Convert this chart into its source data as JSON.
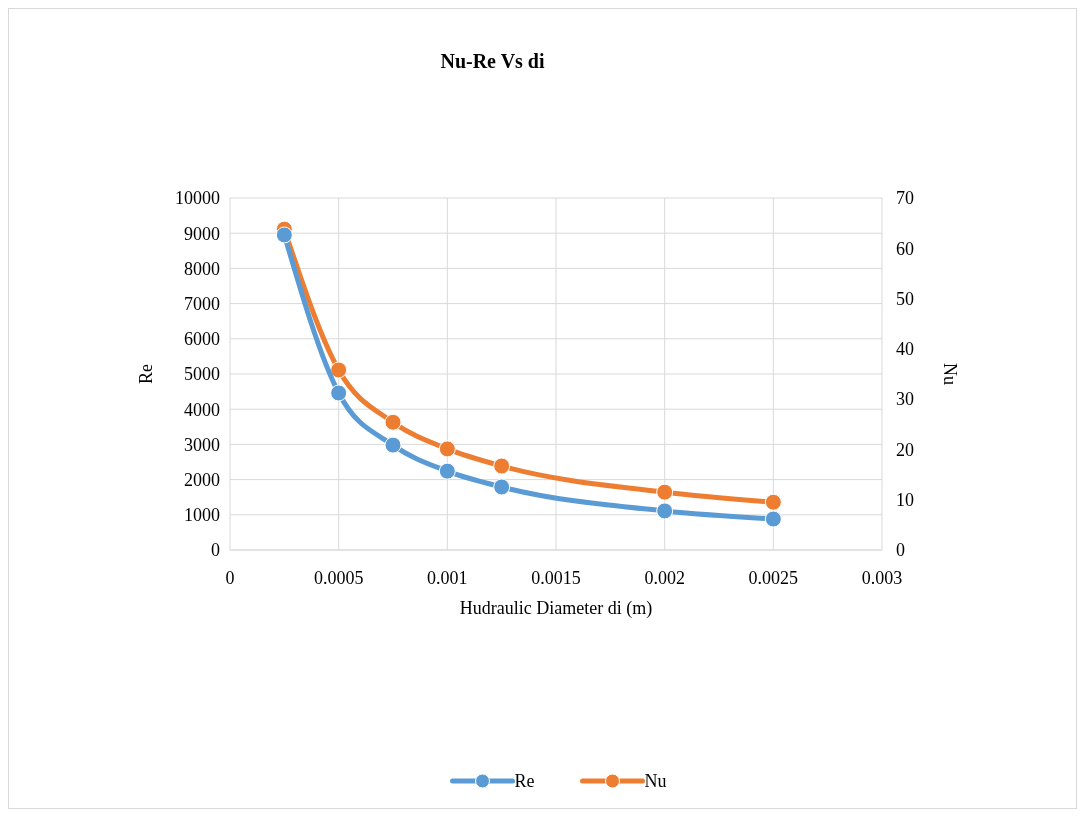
{
  "chart_data": {
    "type": "line",
    "title": "Nu-Re Vs di",
    "xlabel": "Hudraulic Diameter di (m)",
    "ylabel": "Re",
    "y2label": "Nu",
    "x": [
      0.00025,
      0.0005,
      0.00075,
      0.001,
      0.00125,
      0.002,
      0.0025
    ],
    "series": [
      {
        "name": "Re",
        "color": "#5b9bd5",
        "values": [
          8950,
          4460,
          2980,
          2240,
          1790,
          1110,
          880
        ]
      },
      {
        "name": "Nu",
        "color": "#ed7d31",
        "axis": "y2",
        "values": [
          63.8,
          35.8,
          25.4,
          20.1,
          16.7,
          11.5,
          9.5
        ]
      }
    ],
    "xlim": [
      0,
      0.003
    ],
    "xticks": [
      0,
      0.0005,
      0.001,
      0.0015,
      0.002,
      0.0025,
      0.003
    ],
    "ylim": [
      0,
      10000
    ],
    "yticks": [
      0,
      1000,
      2000,
      3000,
      4000,
      5000,
      6000,
      7000,
      8000,
      9000,
      10000
    ],
    "y2lim": [
      0,
      70
    ],
    "y2ticks": [
      0,
      10,
      20,
      30,
      40,
      50,
      60,
      70
    ],
    "grid": true,
    "legend": "bottom",
    "marker": "circle",
    "line_style": "solid"
  }
}
